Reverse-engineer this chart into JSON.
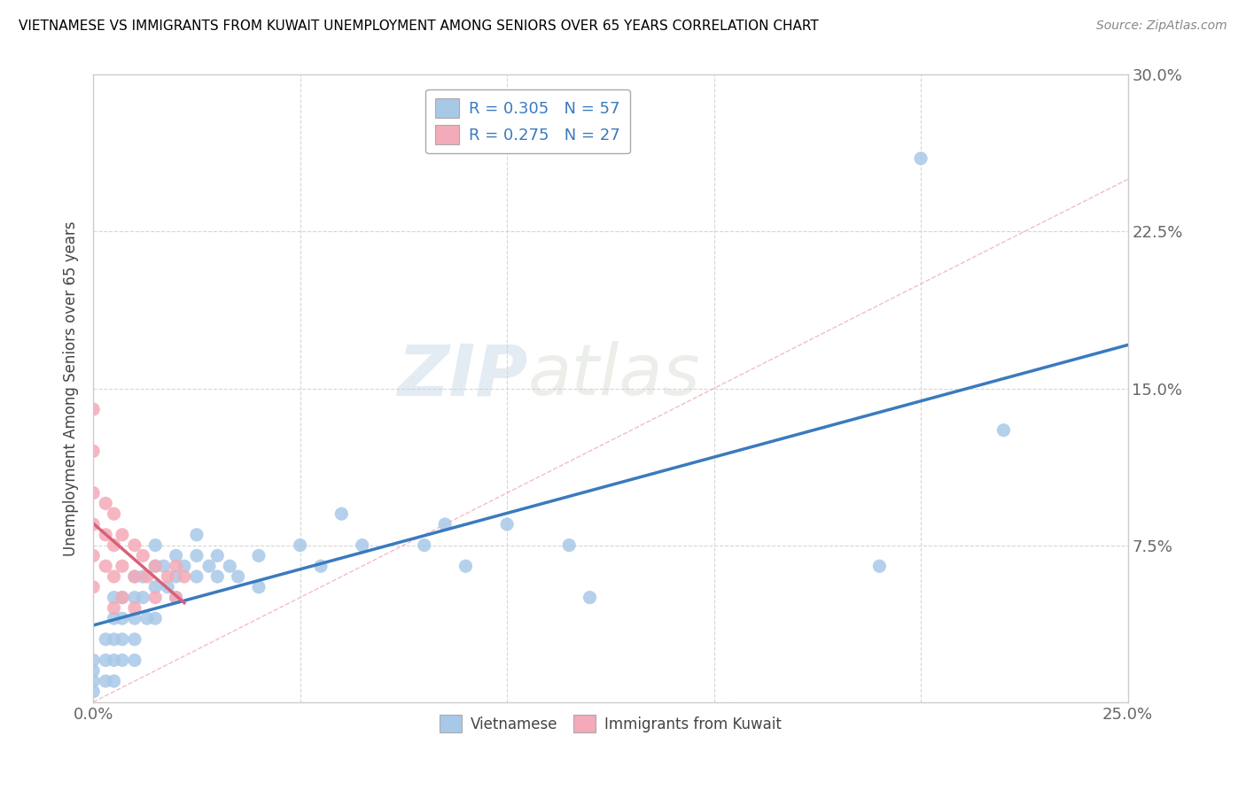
{
  "title": "VIETNAMESE VS IMMIGRANTS FROM KUWAIT UNEMPLOYMENT AMONG SENIORS OVER 65 YEARS CORRELATION CHART",
  "source": "Source: ZipAtlas.com",
  "ylabel": "Unemployment Among Seniors over 65 years",
  "xlim": [
    0.0,
    0.25
  ],
  "ylim": [
    0.0,
    0.3
  ],
  "xticks": [
    0.0,
    0.05,
    0.1,
    0.15,
    0.2,
    0.25
  ],
  "yticks": [
    0.0,
    0.075,
    0.15,
    0.225,
    0.3
  ],
  "xtick_labels": [
    "0.0%",
    "",
    "",
    "",
    "",
    "25.0%"
  ],
  "ytick_labels_left": [
    "",
    "",
    "",
    "",
    ""
  ],
  "ytick_labels_right": [
    "",
    "7.5%",
    "15.0%",
    "22.5%",
    "30.0%"
  ],
  "watermark_zip": "ZIP",
  "watermark_atlas": "atlas",
  "legend_R1": "R = 0.305",
  "legend_N1": "N = 57",
  "legend_R2": "R = 0.275",
  "legend_N2": "N = 27",
  "color_vietnamese": "#a8c8e8",
  "color_kuwait": "#f4aab8",
  "color_line_vietnamese": "#3a7abf",
  "color_line_kuwait": "#d9607a",
  "color_diag": "#f0a0b0",
  "vietnamese_x": [
    0.0,
    0.0,
    0.0,
    0.0,
    0.003,
    0.003,
    0.003,
    0.005,
    0.005,
    0.005,
    0.005,
    0.005,
    0.007,
    0.007,
    0.007,
    0.007,
    0.01,
    0.01,
    0.01,
    0.01,
    0.01,
    0.012,
    0.012,
    0.013,
    0.015,
    0.015,
    0.015,
    0.015,
    0.017,
    0.018,
    0.02,
    0.02,
    0.02,
    0.022,
    0.025,
    0.025,
    0.025,
    0.028,
    0.03,
    0.03,
    0.033,
    0.035,
    0.04,
    0.04,
    0.05,
    0.055,
    0.06,
    0.065,
    0.08,
    0.085,
    0.09,
    0.1,
    0.115,
    0.12,
    0.19,
    0.2,
    0.22
  ],
  "vietnamese_y": [
    0.02,
    0.015,
    0.01,
    0.005,
    0.03,
    0.02,
    0.01,
    0.05,
    0.04,
    0.03,
    0.02,
    0.01,
    0.05,
    0.04,
    0.03,
    0.02,
    0.06,
    0.05,
    0.04,
    0.03,
    0.02,
    0.06,
    0.05,
    0.04,
    0.075,
    0.065,
    0.055,
    0.04,
    0.065,
    0.055,
    0.07,
    0.06,
    0.05,
    0.065,
    0.08,
    0.07,
    0.06,
    0.065,
    0.07,
    0.06,
    0.065,
    0.06,
    0.07,
    0.055,
    0.075,
    0.065,
    0.09,
    0.075,
    0.075,
    0.085,
    0.065,
    0.085,
    0.075,
    0.05,
    0.065,
    0.26,
    0.13
  ],
  "kuwait_x": [
    0.0,
    0.0,
    0.0,
    0.0,
    0.0,
    0.0,
    0.003,
    0.003,
    0.003,
    0.005,
    0.005,
    0.005,
    0.005,
    0.007,
    0.007,
    0.007,
    0.01,
    0.01,
    0.01,
    0.012,
    0.013,
    0.015,
    0.015,
    0.018,
    0.02,
    0.02,
    0.022
  ],
  "kuwait_y": [
    0.14,
    0.12,
    0.1,
    0.085,
    0.07,
    0.055,
    0.095,
    0.08,
    0.065,
    0.09,
    0.075,
    0.06,
    0.045,
    0.08,
    0.065,
    0.05,
    0.075,
    0.06,
    0.045,
    0.07,
    0.06,
    0.065,
    0.05,
    0.06,
    0.065,
    0.05,
    0.06
  ]
}
